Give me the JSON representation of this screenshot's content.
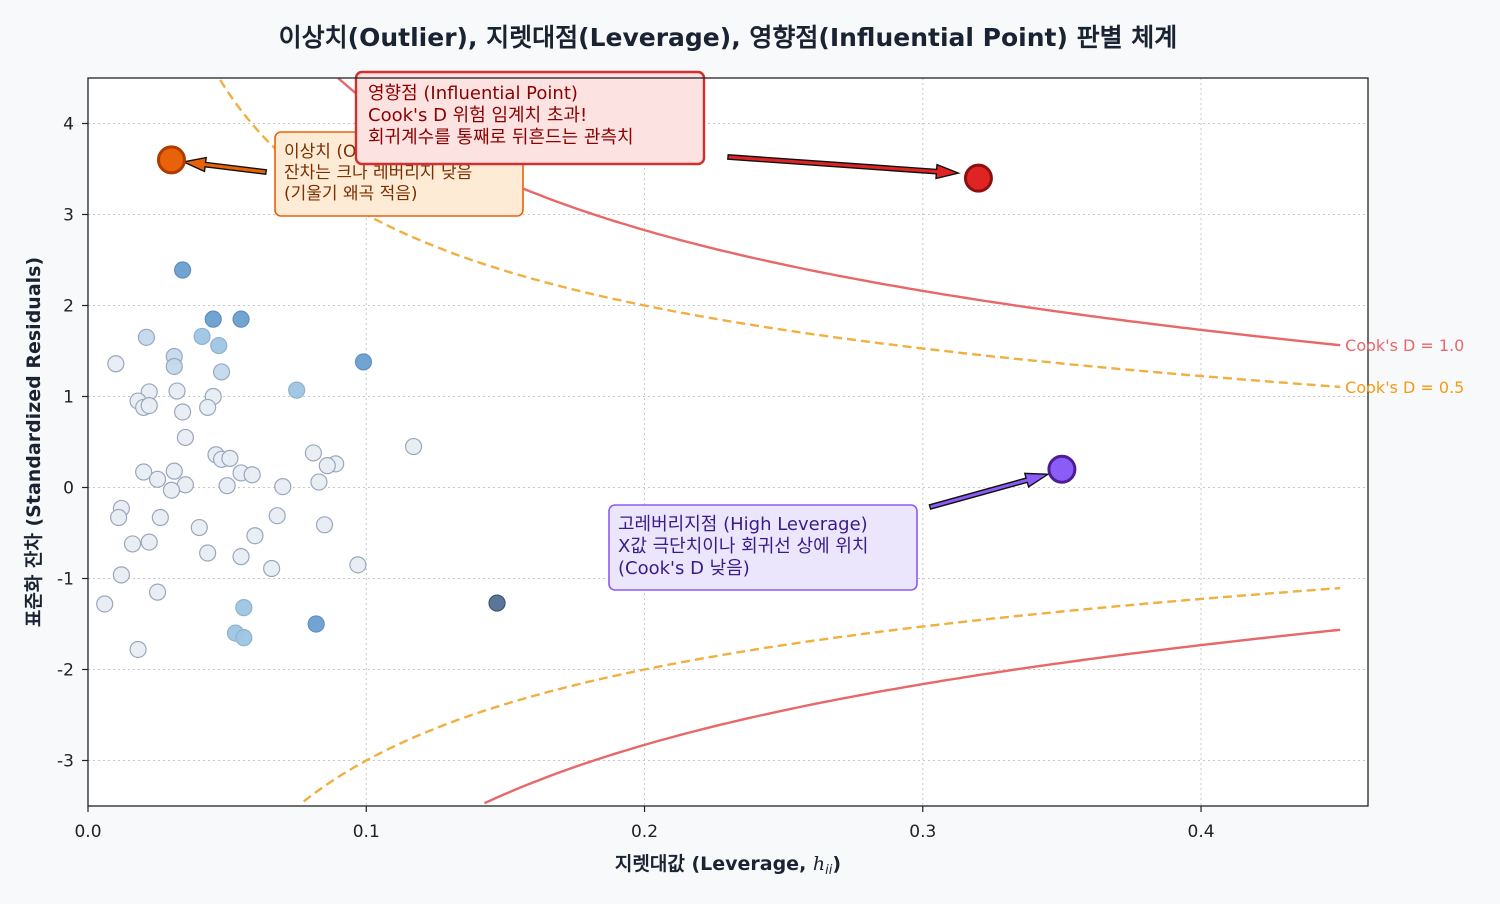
{
  "chart_data": {
    "type": "scatter",
    "title": "이상치(Outlier), 지렛대점(Leverage), 영향점(Influential Point) 판별 체계",
    "xlabel": "지렛대값 (Leverage, ",
    "xlabel_math": "h",
    "xlabel_sub": "ii",
    "xlabel_close": ")",
    "ylabel": "표준화 잔차 (Standardized Residuals)",
    "xlim": [
      0.0,
      0.46
    ],
    "ylim": [
      -3.5,
      4.5
    ],
    "x_ticks": [
      0.0,
      0.1,
      0.2,
      0.3,
      0.4
    ],
    "x_tick_labels": [
      "0.0",
      "0.1",
      "0.2",
      "0.3",
      "0.4"
    ],
    "y_ticks": [
      -3,
      -2,
      -1,
      0,
      1,
      2,
      3,
      4
    ],
    "y_tick_labels": [
      "-3",
      "-2",
      "-1",
      "0",
      "1",
      "2",
      "3",
      "4"
    ],
    "grid": true,
    "points": [
      {
        "x": 0.034,
        "y": 2.39,
        "level": 3
      },
      {
        "x": 0.045,
        "y": 1.85,
        "level": 3
      },
      {
        "x": 0.055,
        "y": 1.85,
        "level": 3
      },
      {
        "x": 0.021,
        "y": 1.65,
        "level": 1
      },
      {
        "x": 0.041,
        "y": 1.66,
        "level": 2
      },
      {
        "x": 0.047,
        "y": 1.56,
        "level": 2
      },
      {
        "x": 0.031,
        "y": 1.44,
        "level": 1
      },
      {
        "x": 0.099,
        "y": 1.38,
        "level": 3
      },
      {
        "x": 0.01,
        "y": 1.36,
        "level": 0
      },
      {
        "x": 0.031,
        "y": 1.33,
        "level": 1
      },
      {
        "x": 0.048,
        "y": 1.27,
        "level": 1
      },
      {
        "x": 0.075,
        "y": 1.07,
        "level": 2
      },
      {
        "x": 0.022,
        "y": 1.05,
        "level": 0
      },
      {
        "x": 0.032,
        "y": 1.06,
        "level": 0
      },
      {
        "x": 0.045,
        "y": 1.0,
        "level": 0
      },
      {
        "x": 0.018,
        "y": 0.95,
        "level": 0
      },
      {
        "x": 0.02,
        "y": 0.88,
        "level": 0
      },
      {
        "x": 0.022,
        "y": 0.9,
        "level": 0
      },
      {
        "x": 0.043,
        "y": 0.88,
        "level": 0
      },
      {
        "x": 0.034,
        "y": 0.83,
        "level": 0
      },
      {
        "x": 0.035,
        "y": 0.55,
        "level": 0
      },
      {
        "x": 0.117,
        "y": 0.45,
        "level": 0
      },
      {
        "x": 0.081,
        "y": 0.38,
        "level": 0
      },
      {
        "x": 0.046,
        "y": 0.36,
        "level": 0
      },
      {
        "x": 0.048,
        "y": 0.31,
        "level": 0
      },
      {
        "x": 0.051,
        "y": 0.32,
        "level": 0
      },
      {
        "x": 0.089,
        "y": 0.26,
        "level": 0
      },
      {
        "x": 0.086,
        "y": 0.24,
        "level": 0
      },
      {
        "x": 0.02,
        "y": 0.17,
        "level": 0
      },
      {
        "x": 0.031,
        "y": 0.18,
        "level": 0
      },
      {
        "x": 0.055,
        "y": 0.16,
        "level": 0
      },
      {
        "x": 0.059,
        "y": 0.14,
        "level": 0
      },
      {
        "x": 0.025,
        "y": 0.09,
        "level": 0
      },
      {
        "x": 0.035,
        "y": 0.03,
        "level": 0
      },
      {
        "x": 0.083,
        "y": 0.06,
        "level": 0
      },
      {
        "x": 0.05,
        "y": 0.02,
        "level": 0
      },
      {
        "x": 0.07,
        "y": 0.01,
        "level": 0
      },
      {
        "x": 0.03,
        "y": -0.03,
        "level": 0
      },
      {
        "x": 0.012,
        "y": -0.23,
        "level": 0
      },
      {
        "x": 0.011,
        "y": -0.33,
        "level": 0
      },
      {
        "x": 0.026,
        "y": -0.33,
        "level": 0
      },
      {
        "x": 0.068,
        "y": -0.31,
        "level": 0
      },
      {
        "x": 0.04,
        "y": -0.44,
        "level": 0
      },
      {
        "x": 0.085,
        "y": -0.41,
        "level": 0
      },
      {
        "x": 0.06,
        "y": -0.53,
        "level": 0
      },
      {
        "x": 0.016,
        "y": -0.62,
        "level": 0
      },
      {
        "x": 0.022,
        "y": -0.6,
        "level": 0
      },
      {
        "x": 0.043,
        "y": -0.72,
        "level": 0
      },
      {
        "x": 0.055,
        "y": -0.76,
        "level": 0
      },
      {
        "x": 0.097,
        "y": -0.85,
        "level": 0
      },
      {
        "x": 0.066,
        "y": -0.89,
        "level": 0
      },
      {
        "x": 0.012,
        "y": -0.96,
        "level": 0
      },
      {
        "x": 0.025,
        "y": -1.15,
        "level": 0
      },
      {
        "x": 0.006,
        "y": -1.28,
        "level": 0
      },
      {
        "x": 0.147,
        "y": -1.27,
        "level": 4
      },
      {
        "x": 0.056,
        "y": -1.32,
        "level": 2
      },
      {
        "x": 0.082,
        "y": -1.5,
        "level": 3
      },
      {
        "x": 0.053,
        "y": -1.6,
        "level": 2
      },
      {
        "x": 0.056,
        "y": -1.65,
        "level": 2
      },
      {
        "x": 0.018,
        "y": -1.78,
        "level": 0
      }
    ],
    "cook_lines": [
      {
        "label": "Cook's D = 1.0",
        "D": 1.0,
        "color": "#e8686a",
        "dashed": false
      },
      {
        "label": "Cook's D = 0.5",
        "D": 0.5,
        "color": "#f0b040",
        "dashed": true,
        "label_color": "#f39c12"
      }
    ],
    "cook_p": 2,
    "cook_hmax": 0.45,
    "special_points": [
      {
        "id": "outlier",
        "x": 0.03,
        "y": 3.6,
        "fill": "#e8620a",
        "stroke": "#b03a00"
      },
      {
        "id": "influential",
        "x": 0.32,
        "y": 3.4,
        "fill": "#e02424",
        "stroke": "#8b1010"
      },
      {
        "id": "leverage",
        "x": 0.35,
        "y": 0.2,
        "fill": "#8b5cf6",
        "stroke": "#4c1d95"
      }
    ],
    "annotations": [
      {
        "id": "influential",
        "lines": [
          "영향점 (Influential Point)",
          "Cook's D 위험 임계치 초과!",
          "회귀계수를 통째로 뒤흔드는 관측치"
        ],
        "fill": "#fde2e2",
        "stroke": "#d32f2f",
        "text_color": "#8b0000"
      },
      {
        "id": "outlier",
        "lines": [
          "이상치 (Outlier)",
          "잔차는 크나 레버리지 낮음",
          "(기울기 왜곡 적음)"
        ],
        "fill": "#fdebd6",
        "stroke": "#e8620a",
        "text_color": "#7a3000"
      },
      {
        "id": "leverage",
        "lines": [
          "고레버리지점 (High Leverage)",
          "X값 극단치이나 회귀선 상에 위치",
          "(Cook's D 낮음)"
        ],
        "fill": "#ebe6fb",
        "stroke": "#8b5cf6",
        "text_color": "#3b1a8a"
      }
    ]
  }
}
